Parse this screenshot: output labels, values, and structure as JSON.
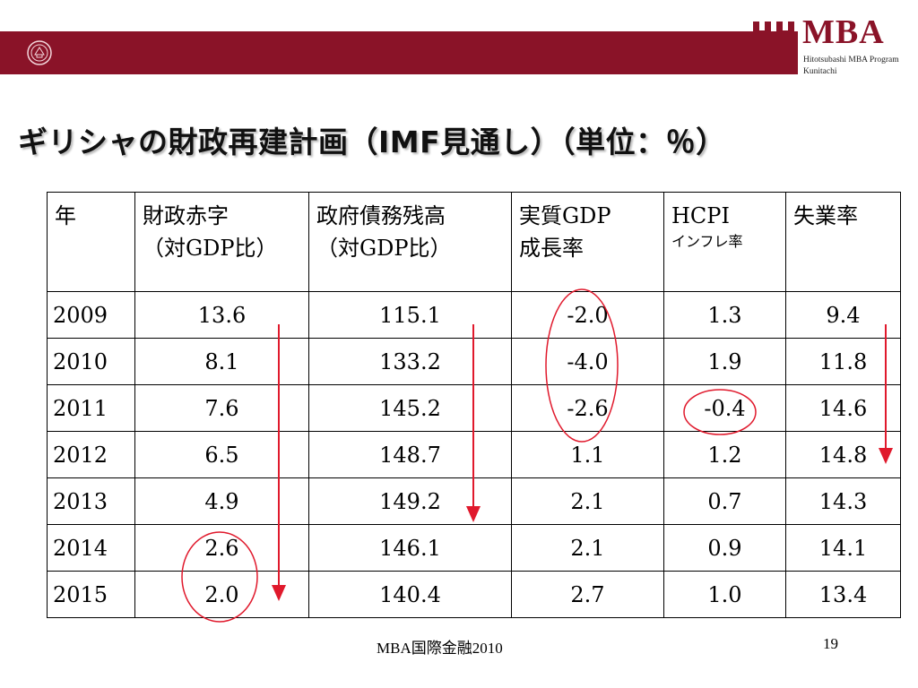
{
  "header": {
    "logo_text": "MBA",
    "logo_sub_line1": "Hitotsubashi MBA Program",
    "logo_sub_line2": "Kunitachi",
    "banner_color": "#8a1328"
  },
  "title": "ギリシャの財政再建計画（IMF見通し）（単位：％）",
  "table": {
    "headers": [
      {
        "line1": "年",
        "line2": "",
        "small": ""
      },
      {
        "line1": "財政赤字",
        "line2": "（対GDP比）",
        "small": ""
      },
      {
        "line1": "政府債務残高",
        "line2": "（対GDP比）",
        "small": ""
      },
      {
        "line1": "実質GDP",
        "line2": "成長率",
        "small": ""
      },
      {
        "line1": "HCPI",
        "line2": "",
        "small": "インフレ率"
      },
      {
        "line1": "失業率",
        "line2": "",
        "small": ""
      }
    ],
    "rows": [
      [
        "2009",
        "13.6",
        "115.1",
        "-2.0",
        "1.3",
        "9.4"
      ],
      [
        "2010",
        "8.1",
        "133.2",
        "-4.0",
        "1.9",
        "11.8"
      ],
      [
        "2011",
        "7.6",
        "145.2",
        "-2.6",
        "-0.4",
        "14.6"
      ],
      [
        "2012",
        "6.5",
        "148.7",
        "1.1",
        "1.2",
        "14.8"
      ],
      [
        "2013",
        "4.9",
        "149.2",
        "2.1",
        "0.7",
        "14.3"
      ],
      [
        "2014",
        "2.6",
        "146.1",
        "2.1",
        "0.9",
        "14.1"
      ],
      [
        "2015",
        "2.0",
        "140.4",
        "2.7",
        "1.0",
        "13.4"
      ]
    ]
  },
  "annotation_color": "#e0192c",
  "footer": {
    "center": "MBA国際金融2010",
    "page": "19"
  }
}
